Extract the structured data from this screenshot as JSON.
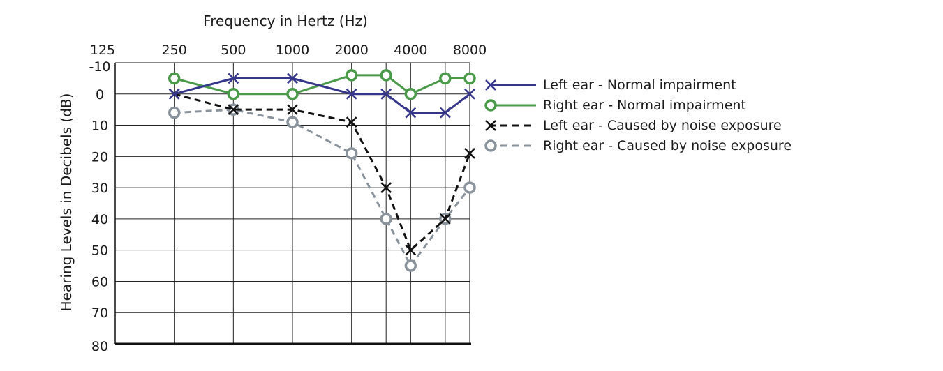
{
  "chart_data": {
    "type": "line",
    "title": "Frequency in Hertz (Hz)",
    "ylabel": "Hearing Levels in Decibels (dB)",
    "x_tick_labels": [
      "125",
      "250",
      "500",
      "1000",
      "2000",
      "4000",
      "8000"
    ],
    "x_tick_values": [
      125,
      250,
      500,
      1000,
      2000,
      4000,
      8000
    ],
    "y_tick_labels": [
      "-10",
      "0",
      "10",
      "20",
      "30",
      "40",
      "50",
      "60",
      "70",
      "80"
    ],
    "y_tick_values": [
      -10,
      0,
      10,
      20,
      30,
      40,
      50,
      60,
      70,
      80
    ],
    "ylim": [
      -10,
      80
    ],
    "y_inverted": true,
    "x_scale": "log",
    "xlim": [
      125,
      8000
    ],
    "grid": true,
    "legend_position": "right",
    "x": [
      250,
      500,
      1000,
      2000,
      3000,
      4000,
      6000,
      8000
    ],
    "series": [
      {
        "name": "Left ear - Normal impairment",
        "values": [
          0,
          -5,
          -5,
          0,
          0,
          6,
          6,
          0
        ],
        "color": "#36368c",
        "dash": "solid",
        "marker": "x"
      },
      {
        "name": "Right ear - Normal impairment",
        "values": [
          -5,
          0,
          0,
          -6,
          -6,
          0,
          -5,
          -5
        ],
        "color": "#4a9a4a",
        "dash": "solid",
        "marker": "o"
      },
      {
        "name": "Left ear - Caused by noise exposure",
        "values": [
          0,
          5,
          5,
          9,
          30,
          50,
          40,
          19
        ],
        "color": "#111111",
        "dash": "dashed",
        "marker": "x"
      },
      {
        "name": "Right ear - Caused by noise exposure",
        "values": [
          6,
          5,
          9,
          19,
          40,
          55,
          40,
          30
        ],
        "color": "#8a939c",
        "dash": "dashed",
        "marker": "o"
      }
    ]
  }
}
